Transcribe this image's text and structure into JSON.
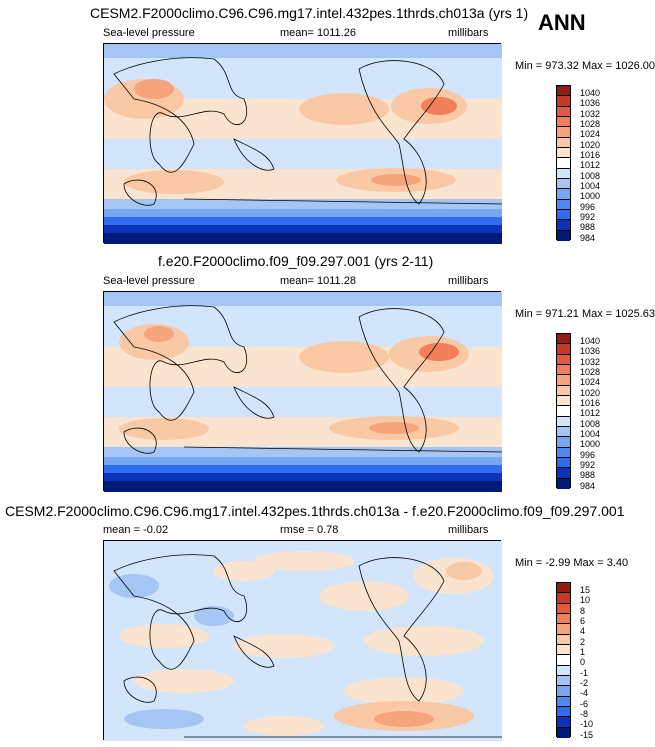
{
  "season": "ANN",
  "colors": {
    "sequential": [
      "#001a7a",
      "#0a33b8",
      "#1b4fe0",
      "#2f6cf0",
      "#4f8af0",
      "#76a7f3",
      "#a5c6f5",
      "#d3e5fa",
      "#fbe4cf",
      "#f9c8a4",
      "#f6a47c",
      "#f07f5a",
      "#e05a3c",
      "#c43a24",
      "#8f1e10"
    ],
    "difference": [
      "#001a7a",
      "#0a33b8",
      "#1b4fe0",
      "#2f6cf0",
      "#4f8af0",
      "#76a7f3",
      "#a5c6f5",
      "#d3e5fa",
      "#fbe4cf",
      "#f9c8a4",
      "#f6a47c",
      "#f07f5a",
      "#e05a3c",
      "#c43a24",
      "#8f1e10"
    ]
  },
  "panels": [
    {
      "title": "CESM2.F2000climo.C96.C96.mg17.intel.432pes.1thrds.ch013a (yrs 1)",
      "left": "Sea-level pressure",
      "center": "mean= 1011.26",
      "units": "millibars",
      "minmax": "Min = 973.32 Max = 1026.00",
      "legend": [
        "984",
        "988",
        "992",
        "996",
        "1000",
        "1004",
        "1008",
        "1012",
        "1016",
        "1020",
        "1024",
        "1028",
        "1032",
        "1036",
        "1040"
      ]
    },
    {
      "title": "f.e20.F2000climo.f09_f09.297.001 (yrs 2-11)",
      "left": "Sea-level pressure",
      "center": "mean= 1011.28",
      "units": "millibars",
      "minmax": "Min = 971.21 Max = 1025.63",
      "legend": [
        "984",
        "988",
        "992",
        "996",
        "1000",
        "1004",
        "1008",
        "1012",
        "1016",
        "1020",
        "1024",
        "1028",
        "1032",
        "1036",
        "1040"
      ]
    },
    {
      "title": "CESM2.F2000climo.C96.C96.mg17.intel.432pes.1thrds.ch013a - f.e20.F2000climo.f09_f09.297.001",
      "left": "mean =  -0.02",
      "center": "rmse =   0.78",
      "units": "millibars",
      "minmax": "Min =  -2.99 Max =   3.40",
      "legend": [
        "-15",
        "-10",
        "-8",
        "-6",
        "-4",
        "-2",
        "-1",
        "0",
        "1",
        "2",
        "4",
        "6",
        "8",
        "10",
        "15"
      ]
    }
  ]
}
